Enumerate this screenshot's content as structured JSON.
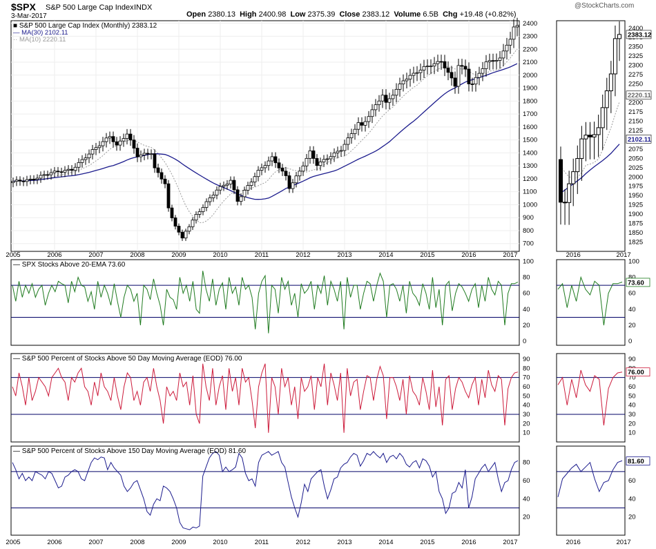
{
  "header": {
    "symbol": "$SPX",
    "name": "S&P 500 Large Cap Index",
    "exchange": "INDX",
    "date": "3-Mar-2017",
    "ohlc": {
      "open_label": "Open",
      "open": "2380.13",
      "high_label": "High",
      "high": "2400.98",
      "low_label": "Low",
      "low": "2375.39",
      "close_label": "Close",
      "close": "2383.12",
      "volume_label": "Volume",
      "volume": "6.5B",
      "chg_label": "Chg",
      "chg": "+19.48 (+0.82%)"
    },
    "watermark": "@StockCharts.com"
  },
  "colors": {
    "candle": "#000000",
    "ma30": "#1a1a8c",
    "ma10": "#999999",
    "ema20": "#1e7a1e",
    "pct50": "#cc1a3a",
    "pct150": "#1a1a8c",
    "hline": "#000066"
  },
  "chart_data": [
    {
      "type": "candlestick",
      "title": "S&P 500 Large Cap Index (Monthly) 2383.12",
      "ma30_label": "MA(30) 2102.11",
      "ma10_label": "MA(10) 2220.11",
      "last_value": "2383.12",
      "ma30_last": "2102.11",
      "ma10_last": "2220.11",
      "y_ticks": [
        700,
        800,
        900,
        1000,
        1100,
        1200,
        1300,
        1400,
        1500,
        1600,
        1700,
        1800,
        1900,
        2000,
        2100,
        2200,
        2300,
        2400
      ],
      "ylim": [
        640,
        2420
      ],
      "x_labels": [
        "2005",
        "2006",
        "2007",
        "2008",
        "2009",
        "2010",
        "2011",
        "2012",
        "2013",
        "2014",
        "2015",
        "2016",
        "2017"
      ],
      "close_anchors": [
        [
          "2005-01",
          1180
        ],
        [
          "2005-06",
          1191
        ],
        [
          "2005-12",
          1248
        ],
        [
          "2006-06",
          1270
        ],
        [
          "2006-12",
          1418
        ],
        [
          "2007-05",
          1530
        ],
        [
          "2007-07",
          1455
        ],
        [
          "2007-10",
          1549
        ],
        [
          "2008-01",
          1378
        ],
        [
          "2008-05",
          1400
        ],
        [
          "2008-06",
          1280
        ],
        [
          "2008-09",
          1166
        ],
        [
          "2008-10",
          968
        ],
        [
          "2008-11",
          896
        ],
        [
          "2009-02",
          735
        ],
        [
          "2009-03",
          797
        ],
        [
          "2009-06",
          919
        ],
        [
          "2009-12",
          1115
        ],
        [
          "2010-04",
          1186
        ],
        [
          "2010-06",
          1030
        ],
        [
          "2010-12",
          1258
        ],
        [
          "2011-04",
          1363
        ],
        [
          "2011-08",
          1218
        ],
        [
          "2011-09",
          1131
        ],
        [
          "2011-12",
          1257
        ],
        [
          "2012-03",
          1408
        ],
        [
          "2012-05",
          1310
        ],
        [
          "2012-12",
          1426
        ],
        [
          "2013-05",
          1631
        ],
        [
          "2013-06",
          1606
        ],
        [
          "2013-12",
          1848
        ],
        [
          "2014-01",
          1782
        ],
        [
          "2014-06",
          1960
        ],
        [
          "2014-12",
          2059
        ],
        [
          "2015-05",
          2107
        ],
        [
          "2015-08",
          1972
        ],
        [
          "2015-09",
          1920
        ],
        [
          "2015-10",
          2079
        ],
        [
          "2015-12",
          2044
        ],
        [
          "2016-01",
          1940
        ],
        [
          "2016-02",
          1932
        ],
        [
          "2016-06",
          2099
        ],
        [
          "2016-10",
          2126
        ],
        [
          "2016-12",
          2239
        ],
        [
          "2017-01",
          2279
        ],
        [
          "2017-02",
          2364
        ],
        [
          "2017-03",
          2383
        ]
      ],
      "zoom_panel": {
        "x_labels": [
          "2016",
          "2017"
        ],
        "y_ticks": [
          1825,
          1850,
          1875,
          1900,
          1925,
          1950,
          1975,
          2000,
          2025,
          2050,
          2075,
          2100,
          2125,
          2150,
          2175,
          2200,
          2225,
          2250,
          2275,
          2300,
          2325,
          2350,
          2375,
          2400
        ],
        "ylim": [
          1800,
          2420
        ]
      }
    },
    {
      "type": "line",
      "title": "SPX Stocks Above 20-EMA 73.60",
      "last_value": "73.60",
      "y_ticks": [
        0,
        20,
        40,
        60,
        80,
        100
      ],
      "ylim": [
        -5,
        102
      ],
      "hlines": [
        70,
        30
      ],
      "values": [
        70,
        50,
        75,
        55,
        70,
        60,
        72,
        55,
        65,
        70,
        45,
        60,
        70,
        62,
        75,
        72,
        70,
        48,
        75,
        62,
        80,
        70,
        68,
        50,
        62,
        40,
        75,
        55,
        70,
        60,
        45,
        72,
        50,
        30,
        55,
        70,
        65,
        50,
        60,
        20,
        70,
        65,
        52,
        78,
        60,
        45,
        20,
        65,
        55,
        52,
        40,
        80,
        60,
        70,
        50,
        75,
        40,
        35,
        88,
        65,
        50,
        78,
        45,
        65,
        73,
        40,
        80,
        60,
        68,
        45,
        80,
        65,
        70,
        55,
        15,
        60,
        75,
        82,
        10,
        70,
        65,
        35,
        80,
        65,
        75,
        45,
        60,
        30,
        72,
        60,
        65,
        75,
        40,
        70,
        60,
        82,
        45,
        75,
        65,
        50,
        75,
        15,
        80,
        55,
        70,
        70,
        40,
        60,
        75,
        72,
        50,
        70,
        85,
        75,
        30,
        70,
        72,
        65,
        50,
        70,
        35,
        75,
        60,
        55,
        45,
        72,
        60,
        40,
        80,
        42,
        65,
        20,
        70,
        75,
        38,
        60,
        72,
        68,
        60,
        50,
        65,
        72,
        42,
        70,
        50,
        80,
        65,
        58,
        75,
        70,
        20,
        60,
        72,
        72,
        74
      ]
    },
    {
      "type": "line",
      "title": "S&P 500 Percent of Stocks Above 50 Day Moving Average (EOD) 76.00",
      "last_value": "76.00",
      "y_ticks": [
        10,
        20,
        30,
        40,
        50,
        60,
        70,
        80,
        90
      ],
      "ylim": [
        0,
        96
      ],
      "hlines": [
        70,
        30
      ],
      "values": [
        60,
        50,
        75,
        60,
        40,
        70,
        45,
        55,
        70,
        65,
        60,
        50,
        70,
        75,
        80,
        70,
        65,
        45,
        70,
        65,
        75,
        80,
        60,
        55,
        40,
        65,
        50,
        75,
        60,
        55,
        45,
        70,
        50,
        35,
        60,
        75,
        70,
        45,
        55,
        40,
        65,
        70,
        55,
        80,
        60,
        45,
        20,
        60,
        50,
        55,
        45,
        75,
        60,
        65,
        40,
        72,
        30,
        20,
        85,
        60,
        45,
        80,
        40,
        60,
        72,
        35,
        80,
        55,
        70,
        40,
        80,
        65,
        70,
        45,
        15,
        60,
        75,
        85,
        10,
        70,
        60,
        30,
        80,
        60,
        70,
        40,
        60,
        25,
        70,
        55,
        60,
        72,
        35,
        70,
        60,
        85,
        40,
        75,
        62,
        45,
        75,
        10,
        80,
        50,
        65,
        68,
        35,
        55,
        72,
        70,
        45,
        68,
        82,
        72,
        25,
        70,
        70,
        60,
        45,
        68,
        30,
        72,
        55,
        50,
        40,
        70,
        55,
        35,
        78,
        38,
        60,
        18,
        68,
        72,
        35,
        58,
        70,
        65,
        55,
        48,
        62,
        70,
        40,
        68,
        48,
        78,
        62,
        55,
        72,
        68,
        18,
        58,
        70,
        75,
        76
      ]
    },
    {
      "type": "line",
      "title": "S&P 500 Percent of Stocks Above 150 Day Moving Average (EOD) 81.60",
      "last_value": "81.60",
      "y_ticks": [
        20,
        40,
        60,
        80
      ],
      "ylim": [
        0,
        98
      ],
      "hlines": [
        70,
        30
      ],
      "values": [
        80,
        72,
        62,
        68,
        60,
        64,
        60,
        70,
        68,
        66,
        62,
        70,
        68,
        60,
        52,
        54,
        64,
        66,
        70,
        72,
        70,
        62,
        60,
        70,
        80,
        85,
        83,
        86,
        85,
        72,
        80,
        74,
        70,
        66,
        54,
        48,
        52,
        58,
        60,
        50,
        40,
        26,
        22,
        34,
        40,
        38,
        54,
        52,
        48,
        40,
        30,
        14,
        8,
        7,
        6,
        9,
        8,
        10,
        65,
        75,
        85,
        90,
        92,
        88,
        70,
        75,
        70,
        72,
        75,
        90,
        85,
        68,
        60,
        62,
        54,
        80,
        88,
        90,
        92,
        88,
        90,
        92,
        80,
        75,
        58,
        42,
        30,
        20,
        36,
        56,
        48,
        62,
        66,
        70,
        72,
        54,
        40,
        50,
        62,
        64,
        74,
        78,
        80,
        86,
        90,
        88,
        76,
        82,
        90,
        88,
        92,
        88,
        85,
        90,
        80,
        86,
        88,
        84,
        90,
        86,
        78,
        75,
        80,
        82,
        74,
        84,
        82,
        76,
        64,
        70,
        48,
        40,
        24,
        30,
        46,
        48,
        58,
        52,
        72,
        30,
        42,
        62,
        68,
        74,
        78,
        70,
        75,
        80,
        62,
        48,
        58,
        60,
        72,
        80,
        82
      ]
    }
  ]
}
